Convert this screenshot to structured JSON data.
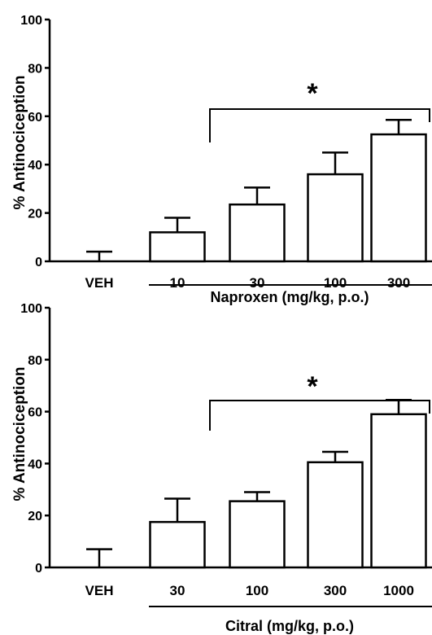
{
  "chart_data": [
    {
      "type": "bar",
      "ylabel": "% Antinociception",
      "xlabel": "Naproxen  (mg/kg, p.o.)",
      "ylim": [
        0,
        100
      ],
      "yticks": [
        "0",
        "20",
        "40",
        "60",
        "80",
        "100"
      ],
      "categories": [
        "VEH",
        "10",
        "30",
        "100",
        "300"
      ],
      "values": [
        0,
        12,
        23.5,
        36,
        52.5
      ],
      "errors": [
        4,
        6,
        7,
        9,
        6
      ],
      "significance": "*"
    },
    {
      "type": "bar",
      "ylabel": "% Antinociception",
      "xlabel": "Citral  (mg/kg, p.o.)",
      "ylim": [
        0,
        100
      ],
      "yticks": [
        "0",
        "20",
        "40",
        "60",
        "80",
        "100"
      ],
      "categories": [
        "VEH",
        "30",
        "100",
        "300",
        "1000"
      ],
      "values": [
        0,
        17.5,
        25.5,
        40.5,
        59
      ],
      "errors": [
        7,
        9,
        3.5,
        4,
        5.5
      ],
      "significance": "*"
    }
  ],
  "colors": {
    "bar_fill": "#ffffff",
    "stroke": "#000000"
  }
}
